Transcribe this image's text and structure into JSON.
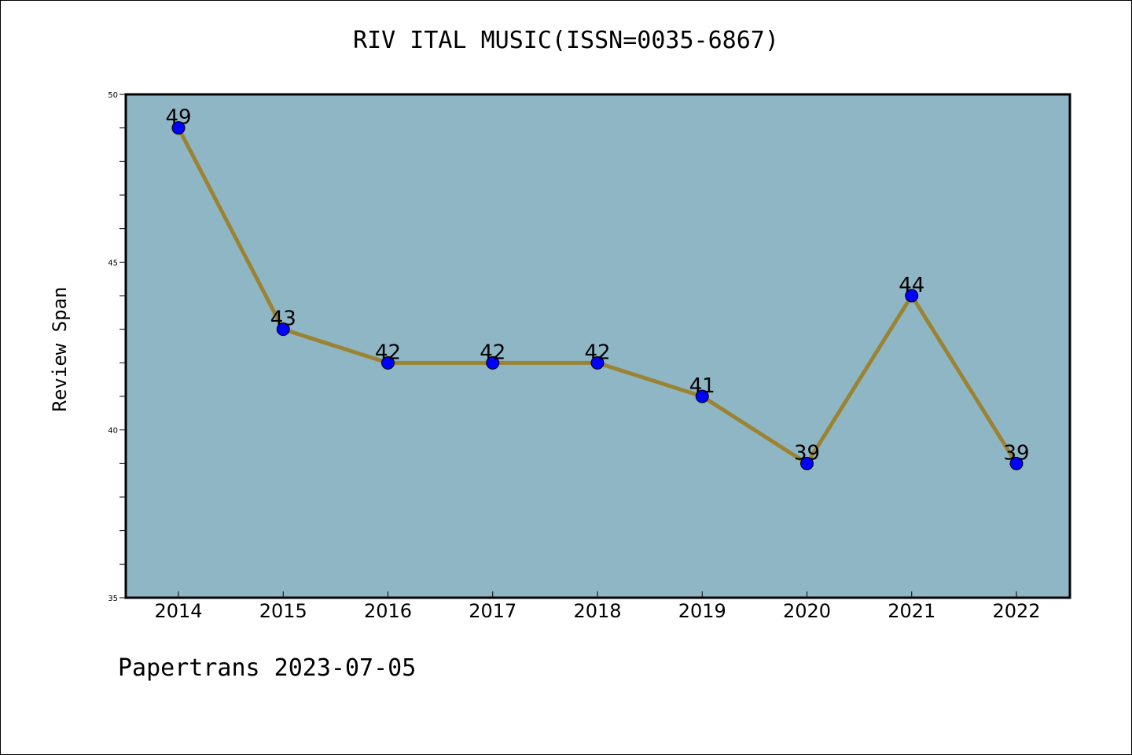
{
  "title": "RIV ITAL MUSIC(ISSN=0035-6867)",
  "footer": "Papertrans 2023-07-05",
  "colors": {
    "plot_background": "#8fb6c5",
    "line": "#9a8434",
    "marker": "#0000ff"
  },
  "chart_data": {
    "type": "line",
    "title": "RIV ITAL MUSIC(ISSN=0035-6867)",
    "xlabel": "",
    "ylabel": "Review Span",
    "categories": [
      "2014",
      "2015",
      "2016",
      "2017",
      "2018",
      "2019",
      "2020",
      "2021",
      "2022"
    ],
    "series": [
      {
        "values": [
          49,
          43,
          42,
          42,
          42,
          41,
          39,
          44,
          39
        ]
      }
    ],
    "data_labels": [
      "49",
      "43",
      "42",
      "42",
      "42",
      "41",
      "39",
      "44",
      "39"
    ],
    "ylim": [
      35,
      50
    ],
    "yticks": [
      "35",
      "40",
      "45",
      "50"
    ],
    "y_minor_step": 1,
    "grid": false,
    "legend": "none"
  }
}
